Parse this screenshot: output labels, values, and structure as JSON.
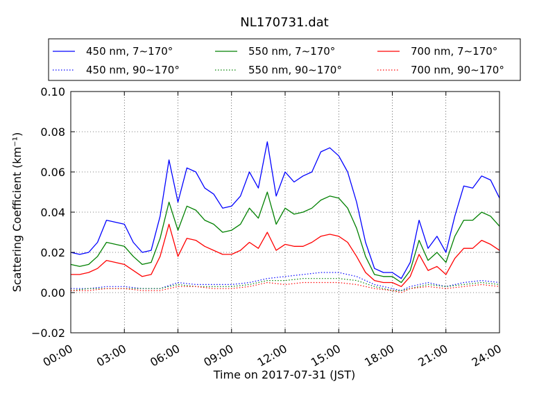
{
  "chart_data": {
    "type": "line",
    "title": "NL170731.dat",
    "xlabel": "Time on 2017-07-31 (JST)",
    "ylabel": "Scattering Coefficient (km⁻¹)",
    "x_unit": "hours",
    "xlim": [
      0,
      24
    ],
    "ylim": [
      -0.02,
      0.1
    ],
    "grid": true,
    "legend_position": "top",
    "x_ticks": [
      {
        "value": 0,
        "label": "00:00"
      },
      {
        "value": 3,
        "label": "03:00"
      },
      {
        "value": 6,
        "label": "06:00"
      },
      {
        "value": 9,
        "label": "09:00"
      },
      {
        "value": 12,
        "label": "12:00"
      },
      {
        "value": 15,
        "label": "15:00"
      },
      {
        "value": 18,
        "label": "18:00"
      },
      {
        "value": 21,
        "label": "21:00"
      },
      {
        "value": 24,
        "label": "24:00"
      }
    ],
    "y_ticks": [
      {
        "value": -0.02,
        "label": "−0.02"
      },
      {
        "value": 0.0,
        "label": "0.00"
      },
      {
        "value": 0.02,
        "label": "0.02"
      },
      {
        "value": 0.04,
        "label": "0.04"
      },
      {
        "value": 0.06,
        "label": "0.06"
      },
      {
        "value": 0.08,
        "label": "0.08"
      },
      {
        "value": 0.1,
        "label": "0.10"
      }
    ],
    "series": [
      {
        "name": "450 nm, 7∼170°",
        "color": "#0000ff",
        "style": "solid",
        "x": [
          0,
          0.5,
          1,
          1.5,
          2,
          2.5,
          3,
          3.5,
          4,
          4.5,
          5,
          5.5,
          6,
          6.5,
          7,
          7.5,
          8,
          8.5,
          9,
          9.5,
          10,
          10.5,
          11,
          11.5,
          12,
          12.5,
          13,
          13.5,
          14,
          14.5,
          15,
          15.5,
          16,
          16.5,
          17,
          17.5,
          18,
          18.5,
          19,
          19.5,
          20,
          20.5,
          21,
          21.5,
          22,
          22.5,
          23,
          23.5,
          24
        ],
        "y": [
          0.02,
          0.019,
          0.02,
          0.025,
          0.036,
          0.035,
          0.034,
          0.025,
          0.02,
          0.021,
          0.038,
          0.066,
          0.045,
          0.062,
          0.06,
          0.052,
          0.049,
          0.042,
          0.043,
          0.048,
          0.06,
          0.052,
          0.075,
          0.048,
          0.06,
          0.055,
          0.058,
          0.06,
          0.07,
          0.072,
          0.068,
          0.06,
          0.045,
          0.025,
          0.012,
          0.01,
          0.01,
          0.007,
          0.015,
          0.036,
          0.022,
          0.028,
          0.02,
          0.038,
          0.053,
          0.052,
          0.058,
          0.056,
          0.047
        ]
      },
      {
        "name": "450 nm, 90∼170°",
        "color": "#0000ff",
        "style": "dotted",
        "x": [
          0,
          1,
          2,
          3,
          4,
          5,
          6,
          7,
          8,
          9,
          10,
          11,
          12,
          13,
          14,
          15,
          16,
          17,
          18,
          18.5,
          19,
          20,
          21,
          22,
          23,
          24
        ],
        "y": [
          0.002,
          0.002,
          0.003,
          0.003,
          0.002,
          0.002,
          0.005,
          0.004,
          0.004,
          0.004,
          0.005,
          0.007,
          0.008,
          0.009,
          0.01,
          0.01,
          0.008,
          0.004,
          0.002,
          0.001,
          0.003,
          0.005,
          0.003,
          0.005,
          0.006,
          0.005
        ]
      },
      {
        "name": "550 nm, 7∼170°",
        "color": "#008000",
        "style": "solid",
        "x": [
          0,
          0.5,
          1,
          1.5,
          2,
          2.5,
          3,
          3.5,
          4,
          4.5,
          5,
          5.5,
          6,
          6.5,
          7,
          7.5,
          8,
          8.5,
          9,
          9.5,
          10,
          10.5,
          11,
          11.5,
          12,
          12.5,
          13,
          13.5,
          14,
          14.5,
          15,
          15.5,
          16,
          16.5,
          17,
          17.5,
          18,
          18.5,
          19,
          19.5,
          20,
          20.5,
          21,
          21.5,
          22,
          22.5,
          23,
          23.5,
          24
        ],
        "y": [
          0.014,
          0.013,
          0.014,
          0.018,
          0.025,
          0.024,
          0.023,
          0.018,
          0.014,
          0.015,
          0.027,
          0.045,
          0.031,
          0.043,
          0.041,
          0.036,
          0.034,
          0.03,
          0.031,
          0.034,
          0.042,
          0.037,
          0.05,
          0.034,
          0.042,
          0.039,
          0.04,
          0.042,
          0.046,
          0.048,
          0.047,
          0.042,
          0.032,
          0.018,
          0.009,
          0.008,
          0.008,
          0.005,
          0.011,
          0.026,
          0.016,
          0.02,
          0.015,
          0.028,
          0.036,
          0.036,
          0.04,
          0.038,
          0.033
        ]
      },
      {
        "name": "550 nm, 90∼170°",
        "color": "#008000",
        "style": "dotted",
        "x": [
          0,
          1,
          2,
          3,
          4,
          5,
          6,
          7,
          8,
          9,
          10,
          11,
          12,
          13,
          14,
          15,
          16,
          17,
          18,
          18.5,
          19,
          20,
          21,
          22,
          23,
          24
        ],
        "y": [
          0.001,
          0.002,
          0.002,
          0.002,
          0.002,
          0.002,
          0.004,
          0.003,
          0.003,
          0.003,
          0.004,
          0.006,
          0.006,
          0.007,
          0.007,
          0.007,
          0.006,
          0.003,
          0.001,
          0.001,
          0.002,
          0.004,
          0.003,
          0.004,
          0.005,
          0.004
        ]
      },
      {
        "name": "700 nm, 7∼170°",
        "color": "#ff0000",
        "style": "solid",
        "x": [
          0,
          0.5,
          1,
          1.5,
          2,
          2.5,
          3,
          3.5,
          4,
          4.5,
          5,
          5.5,
          6,
          6.5,
          7,
          7.5,
          8,
          8.5,
          9,
          9.5,
          10,
          10.5,
          11,
          11.5,
          12,
          12.5,
          13,
          13.5,
          14,
          14.5,
          15,
          15.5,
          16,
          16.5,
          17,
          17.5,
          18,
          18.5,
          19,
          19.5,
          20,
          20.5,
          21,
          21.5,
          22,
          22.5,
          23,
          23.5,
          24
        ],
        "y": [
          0.009,
          0.009,
          0.01,
          0.012,
          0.016,
          0.015,
          0.014,
          0.011,
          0.008,
          0.009,
          0.018,
          0.034,
          0.018,
          0.027,
          0.026,
          0.023,
          0.021,
          0.019,
          0.019,
          0.021,
          0.025,
          0.022,
          0.03,
          0.021,
          0.024,
          0.023,
          0.023,
          0.025,
          0.028,
          0.029,
          0.028,
          0.025,
          0.018,
          0.01,
          0.006,
          0.005,
          0.005,
          0.003,
          0.008,
          0.019,
          0.011,
          0.013,
          0.009,
          0.017,
          0.022,
          0.022,
          0.026,
          0.024,
          0.021
        ]
      },
      {
        "name": "700 nm, 90∼170°",
        "color": "#ff0000",
        "style": "dotted",
        "x": [
          0,
          1,
          2,
          3,
          4,
          5,
          6,
          7,
          8,
          9,
          10,
          11,
          12,
          13,
          14,
          15,
          16,
          17,
          18,
          18.5,
          19,
          20,
          21,
          22,
          23,
          24
        ],
        "y": [
          0.001,
          0.001,
          0.002,
          0.002,
          0.001,
          0.001,
          0.003,
          0.003,
          0.002,
          0.002,
          0.003,
          0.005,
          0.004,
          0.005,
          0.005,
          0.005,
          0.004,
          0.002,
          0.001,
          0.0,
          0.002,
          0.003,
          0.002,
          0.003,
          0.004,
          0.003
        ]
      }
    ]
  }
}
